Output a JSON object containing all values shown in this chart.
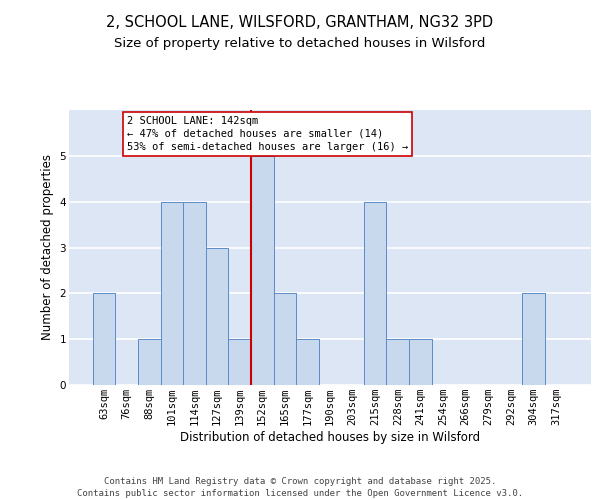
{
  "title_line1": "2, SCHOOL LANE, WILSFORD, GRANTHAM, NG32 3PD",
  "title_line2": "Size of property relative to detached houses in Wilsford",
  "xlabel": "Distribution of detached houses by size in Wilsford",
  "ylabel": "Number of detached properties",
  "footer": "Contains HM Land Registry data © Crown copyright and database right 2025.\nContains public sector information licensed under the Open Government Licence v3.0.",
  "bins": [
    "63sqm",
    "76sqm",
    "88sqm",
    "101sqm",
    "114sqm",
    "127sqm",
    "139sqm",
    "152sqm",
    "165sqm",
    "177sqm",
    "190sqm",
    "203sqm",
    "215sqm",
    "228sqm",
    "241sqm",
    "254sqm",
    "266sqm",
    "279sqm",
    "292sqm",
    "304sqm",
    "317sqm"
  ],
  "values": [
    2,
    0,
    1,
    4,
    4,
    3,
    1,
    5,
    2,
    1,
    0,
    0,
    4,
    1,
    1,
    0,
    0,
    0,
    0,
    2,
    0
  ],
  "bar_color": "#c9d9ed",
  "bar_edge_color": "#5b8cc8",
  "vline_color": "#cc0000",
  "vline_x_index": 7,
  "annotation_text": "2 SCHOOL LANE: 142sqm\n← 47% of detached houses are smaller (14)\n53% of semi-detached houses are larger (16) →",
  "annotation_box_color": "#ffffff",
  "annotation_box_edge": "#cc0000",
  "ylim": [
    0,
    6
  ],
  "yticks": [
    0,
    1,
    2,
    3,
    4,
    5,
    6
  ],
  "background_color": "#dce6f5",
  "grid_color": "#ffffff",
  "title_fontsize": 10.5,
  "subtitle_fontsize": 9.5,
  "axis_label_fontsize": 8.5,
  "tick_fontsize": 7.5,
  "footer_fontsize": 6.5,
  "annotation_fontsize": 7.5
}
